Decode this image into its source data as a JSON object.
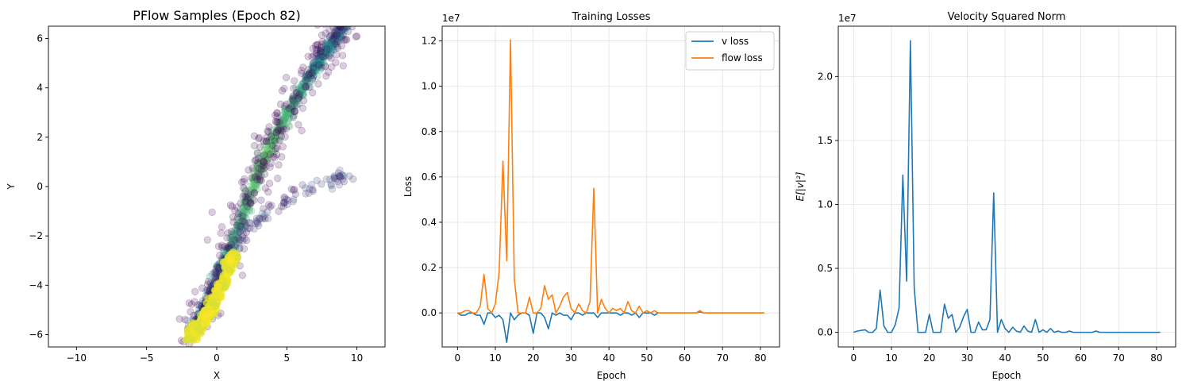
{
  "colors": {
    "v_loss": "#1f77b4",
    "flow_loss": "#ff7f0e",
    "norm": "#1f77b4"
  },
  "chart_data": [
    {
      "type": "scatter",
      "title": "PFlow Samples (Epoch 82)",
      "xlabel": "X",
      "ylabel": "Y",
      "xlim": [
        -12,
        12
      ],
      "ylim": [
        -6.5,
        6.5
      ],
      "xticks": [
        -10,
        -5,
        0,
        5,
        10
      ],
      "yticks": [
        -6,
        -4,
        -2,
        0,
        2,
        4,
        6
      ],
      "xtick_labels": [
        "−10",
        "−5",
        "0",
        "5",
        "10"
      ],
      "ytick_labels": [
        "−6",
        "−4",
        "−2",
        "0",
        "2",
        "4",
        "6"
      ],
      "grid": false,
      "colormap": "viridis",
      "marker_alpha": 0.2,
      "curve": [
        [
          -1.8,
          -5.9
        ],
        [
          -1.5,
          -5.5
        ],
        [
          -1.0,
          -5.0
        ],
        [
          -0.3,
          -4.2
        ],
        [
          0.5,
          -3.2
        ],
        [
          1.2,
          -2.5
        ],
        [
          2.0,
          -1.8
        ],
        [
          2.8,
          -1.4
        ],
        [
          3.5,
          -1.1
        ],
        [
          4.3,
          -0.8
        ],
        [
          5.5,
          -0.4
        ],
        [
          7.0,
          0.1
        ],
        [
          8.5,
          0.3
        ],
        [
          9.5,
          0.5
        ]
      ],
      "band": [
        [
          0.8,
          -2.5
        ],
        [
          1.2,
          -1.6
        ],
        [
          1.6,
          -0.5
        ],
        [
          2.0,
          0.5
        ],
        [
          2.5,
          1.5
        ],
        [
          3.0,
          2.0
        ],
        [
          4.0,
          2.6
        ],
        [
          5.0,
          3.3
        ],
        [
          6.0,
          3.9
        ],
        [
          7.0,
          4.6
        ],
        [
          7.5,
          5.0
        ],
        [
          8.0,
          5.5
        ],
        [
          8.5,
          6.0
        ],
        [
          9.0,
          6.5
        ]
      ]
    },
    {
      "type": "line",
      "title": "Training Losses",
      "xlabel": "Epoch",
      "ylabel": "Loss",
      "offset_text": "1e7",
      "xlim": [
        -4.05,
        85.05
      ],
      "ylim": [
        -0.15,
        1.265
      ],
      "xticks": [
        0,
        10,
        20,
        30,
        40,
        50,
        60,
        70,
        80
      ],
      "yticks": [
        0.0,
        0.2,
        0.4,
        0.6,
        0.8,
        1.0,
        1.2
      ],
      "xtick_labels": [
        "0",
        "10",
        "20",
        "30",
        "40",
        "50",
        "60",
        "70",
        "80"
      ],
      "ytick_labels": [
        "0.0",
        "0.2",
        "0.4",
        "0.6",
        "0.8",
        "1.0",
        "1.2"
      ],
      "grid": true,
      "legend": "top-right",
      "series": [
        {
          "name": "v loss",
          "x": [
            0,
            1,
            2,
            3,
            4,
            5,
            6,
            7,
            8,
            9,
            10,
            11,
            12,
            13,
            14,
            15,
            16,
            17,
            18,
            19,
            20,
            21,
            22,
            23,
            24,
            25,
            26,
            27,
            28,
            29,
            30,
            31,
            32,
            33,
            34,
            35,
            36,
            37,
            38,
            39,
            40,
            41,
            42,
            43,
            44,
            45,
            46,
            47,
            48,
            49,
            50,
            51,
            52,
            53,
            54,
            55,
            56,
            57,
            58,
            59,
            60,
            61,
            62,
            63,
            64,
            65,
            66,
            67,
            68,
            69,
            70,
            71,
            72,
            73,
            74,
            75,
            76,
            77,
            78,
            79,
            80,
            81
          ],
          "values": [
            0,
            -0.01,
            -0.01,
            0,
            0,
            -0.01,
            -0.01,
            -0.05,
            0,
            0,
            -0.02,
            -0.01,
            -0.03,
            -0.13,
            0,
            -0.03,
            -0.01,
            0,
            0,
            -0.01,
            -0.09,
            0,
            0,
            -0.02,
            -0.07,
            0,
            -0.01,
            0,
            -0.01,
            -0.01,
            -0.03,
            0,
            0,
            -0.01,
            0,
            0,
            0,
            -0.02,
            0,
            0,
            0,
            0,
            0,
            -0.01,
            0,
            0,
            -0.01,
            0,
            -0.02,
            0,
            0,
            0,
            -0.01,
            0,
            0,
            0,
            0,
            0,
            0,
            0,
            0,
            0,
            0,
            0,
            0.005,
            0,
            0,
            0,
            0,
            0,
            0,
            0,
            0,
            0,
            0,
            0,
            0,
            0,
            0,
            0,
            0,
            0
          ]
        },
        {
          "name": "flow loss",
          "x": [
            0,
            1,
            2,
            3,
            4,
            5,
            6,
            7,
            8,
            9,
            10,
            11,
            12,
            13,
            14,
            15,
            16,
            17,
            18,
            19,
            20,
            21,
            22,
            23,
            24,
            25,
            26,
            27,
            28,
            29,
            30,
            31,
            32,
            33,
            34,
            35,
            36,
            37,
            38,
            39,
            40,
            41,
            42,
            43,
            44,
            45,
            46,
            47,
            48,
            49,
            50,
            51,
            52,
            53,
            54,
            55,
            56,
            57,
            58,
            59,
            60,
            61,
            62,
            63,
            64,
            65,
            66,
            67,
            68,
            69,
            70,
            71,
            72,
            73,
            74,
            75,
            76,
            77,
            78,
            79,
            80,
            81
          ],
          "values": [
            0,
            0,
            0.01,
            0.01,
            0,
            0,
            0.03,
            0.17,
            0.02,
            0,
            0.04,
            0.18,
            0.67,
            0.23,
            1.205,
            0.15,
            0,
            0,
            0,
            0.07,
            0,
            0,
            0.02,
            0.12,
            0.06,
            0.08,
            0,
            0.03,
            0.07,
            0.09,
            0.02,
            0,
            0.04,
            0.01,
            0,
            0.05,
            0.55,
            0,
            0.06,
            0.02,
            0,
            0.02,
            0.01,
            0.02,
            0,
            0.05,
            0.01,
            0,
            0.03,
            0,
            0.01,
            0,
            0.01,
            0,
            0,
            0,
            0,
            0,
            0,
            0,
            0,
            0,
            0,
            0,
            0.01,
            0,
            0,
            0,
            0,
            0,
            0,
            0,
            0,
            0,
            0,
            0,
            0,
            0,
            0,
            0,
            0,
            0
          ]
        }
      ]
    },
    {
      "type": "line",
      "title": "Velocity Squared Norm",
      "xlabel": "Epoch",
      "ylabel": "E[|v|²]",
      "offset_text": "1e7",
      "xlim": [
        -4.05,
        85.05
      ],
      "ylim": [
        -0.114,
        2.393
      ],
      "xticks": [
        0,
        10,
        20,
        30,
        40,
        50,
        60,
        70,
        80
      ],
      "yticks": [
        0.0,
        0.5,
        1.0,
        1.5,
        2.0
      ],
      "xtick_labels": [
        "0",
        "10",
        "20",
        "30",
        "40",
        "50",
        "60",
        "70",
        "80"
      ],
      "ytick_labels": [
        "0.0",
        "0.5",
        "1.0",
        "1.5",
        "2.0"
      ],
      "grid": true,
      "series": [
        {
          "x": [
            0,
            1,
            2,
            3,
            4,
            5,
            6,
            7,
            8,
            9,
            10,
            11,
            12,
            13,
            14,
            15,
            16,
            17,
            18,
            19,
            20,
            21,
            22,
            23,
            24,
            25,
            26,
            27,
            28,
            29,
            30,
            31,
            32,
            33,
            34,
            35,
            36,
            37,
            38,
            39,
            40,
            41,
            42,
            43,
            44,
            45,
            46,
            47,
            48,
            49,
            50,
            51,
            52,
            53,
            54,
            55,
            56,
            57,
            58,
            59,
            60,
            61,
            62,
            63,
            64,
            65,
            66,
            67,
            68,
            69,
            70,
            71,
            72,
            73,
            74,
            75,
            76,
            77,
            78,
            79,
            80,
            81
          ],
          "values": [
            0,
            0.01,
            0.015,
            0.02,
            0,
            0,
            0.03,
            0.33,
            0.05,
            0,
            0,
            0.06,
            0.19,
            1.23,
            0.4,
            2.28,
            0.35,
            0,
            0,
            0,
            0.14,
            0,
            0,
            0,
            0.22,
            0.11,
            0.14,
            0,
            0.04,
            0.12,
            0.18,
            0,
            0,
            0.08,
            0.02,
            0.02,
            0.1,
            1.09,
            0,
            0.1,
            0.03,
            0,
            0.04,
            0.01,
            0,
            0.05,
            0.01,
            0,
            0.1,
            0,
            0.02,
            0,
            0.03,
            0,
            0.01,
            0,
            0,
            0.01,
            0,
            0,
            0,
            0,
            0,
            0,
            0.01,
            0,
            0,
            0,
            0,
            0,
            0,
            0,
            0,
            0,
            0,
            0,
            0,
            0,
            0,
            0,
            0,
            0
          ]
        }
      ]
    }
  ]
}
